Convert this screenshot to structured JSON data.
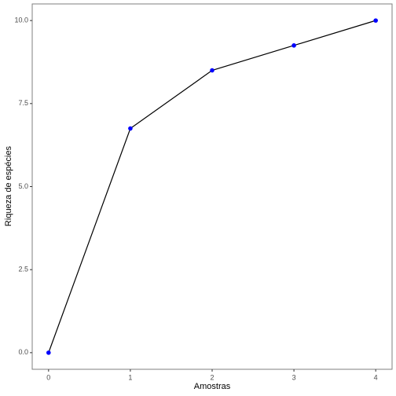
{
  "chart_data": {
    "type": "line",
    "x_label": "Amostras",
    "y_label": "Riqueza de espécies",
    "x": [
      0,
      1,
      2,
      3,
      4
    ],
    "values": [
      0,
      6.75,
      8.5,
      9.25,
      10
    ],
    "line_color": "#000000",
    "point_color": "#0000ff",
    "xlim": [
      -0.2,
      4.2
    ],
    "xticks": [
      0,
      1,
      2,
      3,
      4
    ],
    "ylim": [
      -0.5,
      10.5
    ],
    "yticks": [
      {
        "value": 0,
        "label": "0.0"
      },
      2.5,
      {
        "value": 5,
        "label": "5.0"
      },
      7.5,
      {
        "value": 10,
        "label": "10.0"
      }
    ],
    "grid": false
  }
}
